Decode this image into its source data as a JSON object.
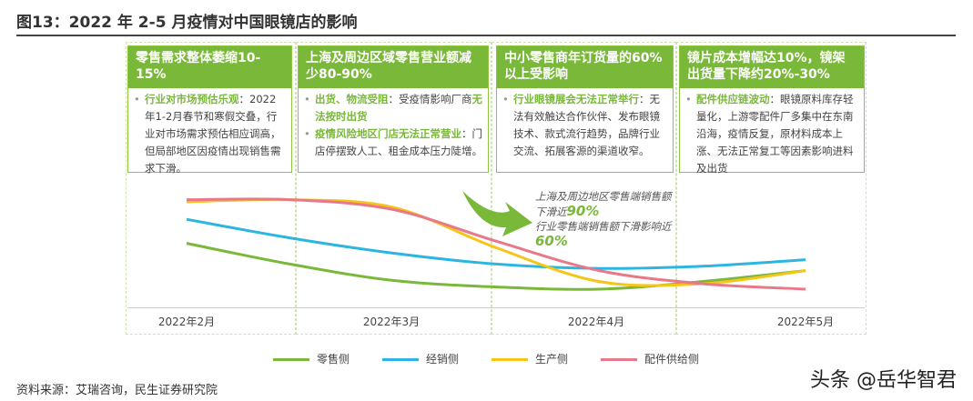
{
  "title": "图13：2022 年 2-5 月疫情对中国眼镜店的影响",
  "cards": [
    {
      "header": "零售需求整体萎缩10-15%",
      "items": [
        {
          "hl": "行业对市场预估乐观",
          "text": "：2022年1-2月春节和寒假交叠，行业对市场需求预估相应调高，但局部地区因疫情出现销售需求下滑。"
        }
      ]
    },
    {
      "header": "上海及周边区域零售营业额减少80-90%",
      "items": [
        {
          "hl": "出货、物流受阻",
          "text": "：受疫情影响厂商",
          "hl2": "无法按时出货"
        },
        {
          "hl": "疫情风险地区门店无法正常营业",
          "text": "：门店停摆致人工、租金成本压力陡增。"
        }
      ]
    },
    {
      "header": "中小零售商年订货量的60%以上受影响",
      "items": [
        {
          "hl": "行业眼镜展会无法正常举行",
          "text": "：无法有效触达合作伙伴、发布眼镜技术、款式流行趋势，品牌行业交流、拓展客源的渠道收窄。"
        }
      ]
    },
    {
      "header": "镜片成本增幅达10%，镜架出货量下降约20%-30%",
      "items": [
        {
          "hl": "配件供应链波动",
          "text": "：眼镜原料库存轻量化，上游零配件厂多集中在东南沿海，疫情反复，原材料成本上涨、无法正常复工等因素影响进料及出货"
        }
      ]
    }
  ],
  "annotation": {
    "line1": "上海及周边地区零售端销售额下滑近",
    "v1": "90%",
    "line2": "行业零售端销售额下滑影响近",
    "v2": "60%"
  },
  "chart_data": {
    "type": "line",
    "categories": [
      "2022年2月",
      "2022年3月",
      "2022年4月",
      "2022年5月"
    ],
    "x": [
      2.0,
      2.5,
      3.0,
      3.5,
      4.0,
      4.5,
      5.0
    ],
    "y_note_unit": "relative level (no axis printed)",
    "series": [
      {
        "name": "零售侧",
        "color": "#7ab83a",
        "values": [
          52,
          33,
          18,
          12,
          10,
          17,
          27
        ]
      },
      {
        "name": "经销侧",
        "color": "#2bb5e0",
        "values": [
          74,
          57,
          43,
          33,
          29,
          31,
          37
        ]
      },
      {
        "name": "生产侧",
        "color": "#f5c518",
        "values": [
          90,
          92,
          85,
          48,
          17,
          15,
          27
        ]
      },
      {
        "name": "配件供给侧",
        "color": "#e8788a",
        "values": [
          92,
          92,
          83,
          54,
          27,
          15,
          10
        ]
      }
    ],
    "legend": "bottom",
    "grid": false
  },
  "footer": "资料来源：艾瑞咨询，民生证券研究院",
  "watermark": "头条 @岳华智君"
}
